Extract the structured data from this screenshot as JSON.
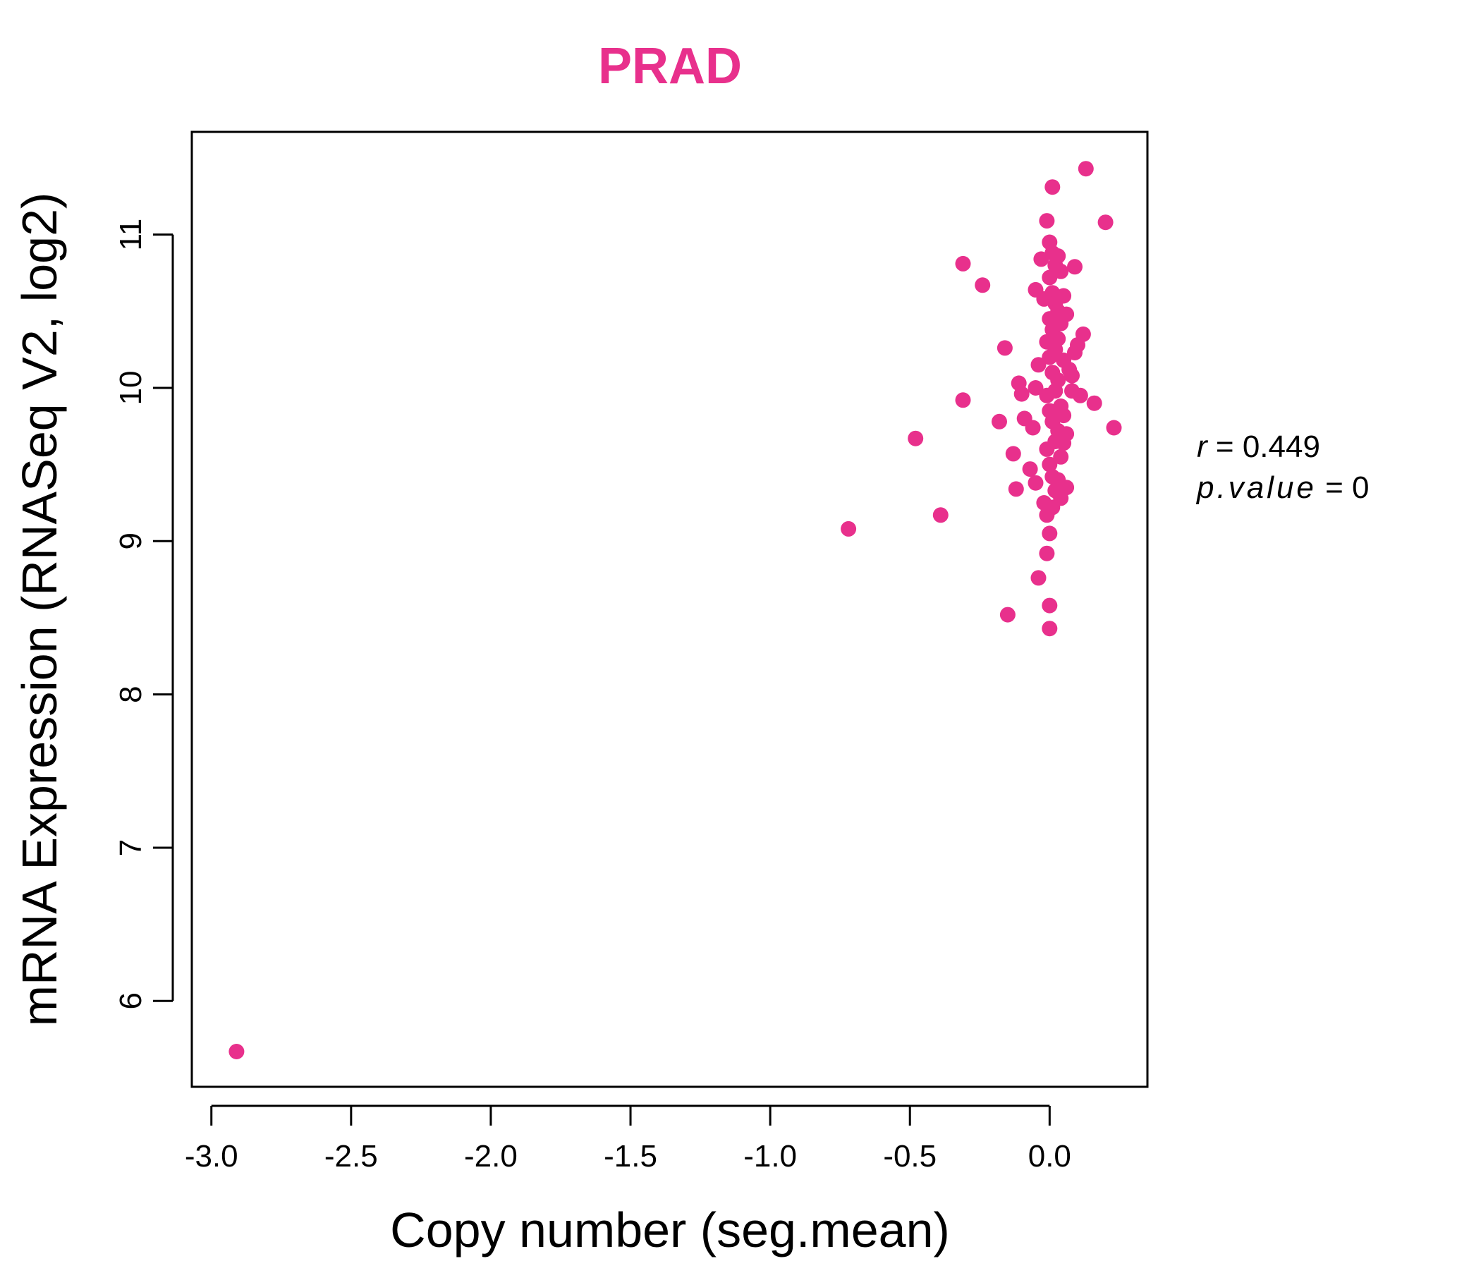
{
  "chart_data": {
    "type": "scatter",
    "title": "PRAD",
    "xlabel": "Copy number (seg.mean)",
    "ylabel": "mRNA Expression (RNASeq V2, log2)",
    "xlim": [
      -3.07,
      0.35
    ],
    "ylim": [
      5.44,
      11.67
    ],
    "x_ticks": [
      -3.0,
      -2.5,
      -2.0,
      -1.5,
      -1.0,
      -0.5,
      0.0
    ],
    "x_tick_labels": [
      "-3.0",
      "-2.5",
      "-2.0",
      "-1.5",
      "-1.0",
      "-0.5",
      "0.0"
    ],
    "y_ticks": [
      6,
      7,
      8,
      9,
      10,
      11
    ],
    "y_tick_labels": [
      "6",
      "7",
      "8",
      "9",
      "10",
      "11"
    ],
    "grid": false,
    "legend": "none",
    "point_color": "#e8308c",
    "annotations": {
      "r_label": "r",
      "r_value": "0.449",
      "p_label": "p.value",
      "p_value": "0"
    },
    "points": [
      [
        -2.91,
        5.67
      ],
      [
        -0.72,
        9.08
      ],
      [
        -0.48,
        9.67
      ],
      [
        -0.39,
        9.17
      ],
      [
        -0.31,
        10.81
      ],
      [
        -0.31,
        9.92
      ],
      [
        -0.24,
        10.67
      ],
      [
        -0.18,
        9.78
      ],
      [
        -0.16,
        10.26
      ],
      [
        -0.15,
        8.52
      ],
      [
        -0.13,
        9.57
      ],
      [
        -0.12,
        9.34
      ],
      [
        -0.11,
        10.03
      ],
      [
        -0.1,
        9.96
      ],
      [
        -0.09,
        9.8
      ],
      [
        -0.07,
        9.47
      ],
      [
        -0.06,
        9.74
      ],
      [
        -0.05,
        10.64
      ],
      [
        -0.05,
        10.0
      ],
      [
        -0.05,
        9.38
      ],
      [
        -0.04,
        10.15
      ],
      [
        -0.04,
        8.76
      ],
      [
        -0.03,
        10.84
      ],
      [
        -0.02,
        10.58
      ],
      [
        -0.02,
        9.25
      ],
      [
        -0.01,
        11.09
      ],
      [
        -0.01,
        10.3
      ],
      [
        -0.01,
        9.95
      ],
      [
        -0.01,
        9.6
      ],
      [
        -0.01,
        9.17
      ],
      [
        -0.01,
        8.92
      ],
      [
        0.0,
        10.95
      ],
      [
        0.0,
        10.72
      ],
      [
        0.0,
        10.45
      ],
      [
        0.0,
        10.2
      ],
      [
        0.0,
        9.85
      ],
      [
        0.0,
        9.5
      ],
      [
        0.0,
        9.05
      ],
      [
        0.0,
        8.58
      ],
      [
        0.0,
        8.43
      ],
      [
        0.01,
        11.31
      ],
      [
        0.01,
        10.88
      ],
      [
        0.01,
        10.62
      ],
      [
        0.01,
        10.38
      ],
      [
        0.01,
        10.1
      ],
      [
        0.01,
        9.78
      ],
      [
        0.01,
        9.42
      ],
      [
        0.01,
        9.22
      ],
      [
        0.02,
        10.8
      ],
      [
        0.02,
        10.55
      ],
      [
        0.02,
        10.25
      ],
      [
        0.02,
        9.98
      ],
      [
        0.02,
        9.65
      ],
      [
        0.02,
        9.33
      ],
      [
        0.03,
        10.86
      ],
      [
        0.03,
        10.5
      ],
      [
        0.03,
        10.32
      ],
      [
        0.03,
        10.05
      ],
      [
        0.03,
        9.72
      ],
      [
        0.03,
        9.4
      ],
      [
        0.04,
        10.76
      ],
      [
        0.04,
        10.42
      ],
      [
        0.04,
        9.88
      ],
      [
        0.04,
        9.55
      ],
      [
        0.04,
        9.28
      ],
      [
        0.05,
        10.6
      ],
      [
        0.05,
        10.18
      ],
      [
        0.05,
        9.82
      ],
      [
        0.05,
        9.64
      ],
      [
        0.06,
        10.48
      ],
      [
        0.06,
        9.7
      ],
      [
        0.06,
        9.35
      ],
      [
        0.07,
        10.12
      ],
      [
        0.08,
        10.08
      ],
      [
        0.08,
        9.98
      ],
      [
        0.09,
        10.79
      ],
      [
        0.09,
        10.23
      ],
      [
        0.1,
        10.28
      ],
      [
        0.11,
        9.95
      ],
      [
        0.12,
        10.35
      ],
      [
        0.13,
        11.43
      ],
      [
        0.16,
        9.9
      ],
      [
        0.2,
        11.08
      ],
      [
        0.23,
        9.74
      ]
    ]
  }
}
